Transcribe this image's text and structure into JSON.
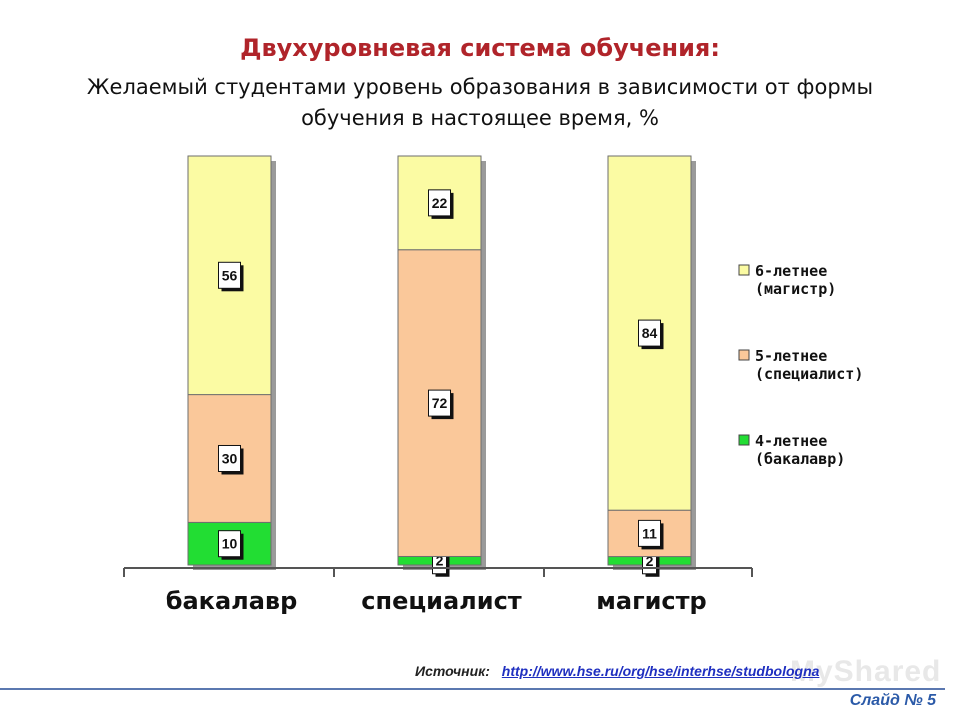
{
  "slide": {
    "title": "Двухуровневая система обучения:",
    "subtitle": "Желаемый студентами уровень образования в зависимости от формы обучения в настоящее время, %",
    "source_label": "Источник:",
    "source_link": "http://www.hse.ru/org/hse/interhse/studbologna",
    "slide_number": "Слайд № 5",
    "watermark": "MyShared"
  },
  "colors": {
    "green": "#22dd33",
    "peach": "#fac89a",
    "yellow": "#fbfba3",
    "text": "#111111",
    "title": "#b0242a"
  },
  "chart_data": {
    "type": "bar",
    "stacked": true,
    "categories": [
      "бакалавр",
      "специалист",
      "магистр"
    ],
    "series": [
      {
        "name": "4-летнее (бакалавр)",
        "color": "#22dd33",
        "values": [
          10,
          2,
          2
        ]
      },
      {
        "name": "5-летнее (специалист)",
        "color": "#fac89a",
        "values": [
          30,
          72,
          11
        ]
      },
      {
        "name": "6-летнее (магистр)",
        "color": "#fbfba3",
        "values": [
          56,
          22,
          84
        ]
      }
    ],
    "legend": [
      {
        "line1": "6-летнее",
        "line2": "(магистр)",
        "color": "#fbfba3"
      },
      {
        "line1": "5-летнее",
        "line2": "(специалист)",
        "color": "#fac89a"
      },
      {
        "line1": "4-летнее",
        "line2": "(бакалавр)",
        "color": "#22dd33"
      }
    ],
    "legend_position": "right",
    "ylim": [
      0,
      100
    ],
    "grid": false
  }
}
